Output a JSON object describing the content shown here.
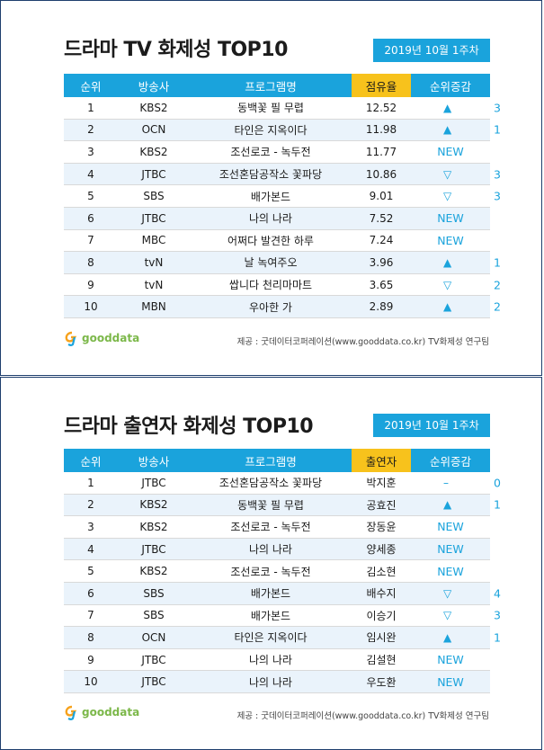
{
  "panels": [
    {
      "title": "드라마 TV 화제성 TOP10",
      "date": "2019년 10월 1주차",
      "headers": [
        "순위",
        "방송사",
        "프로그램명",
        "점유율",
        "순위증감"
      ],
      "rows": [
        {
          "rank": "1",
          "channel": "KBS2",
          "program": "동백꽃 필 무렵",
          "value": "12.52",
          "change_icon": "up-triangle",
          "change": "3"
        },
        {
          "rank": "2",
          "channel": "OCN",
          "program": "타인은 지옥이다",
          "value": "11.98",
          "change_icon": "up-triangle",
          "change": "1"
        },
        {
          "rank": "3",
          "channel": "KBS2",
          "program": "조선로코 - 녹두전",
          "value": "11.77",
          "change_icon": "",
          "change": "NEW"
        },
        {
          "rank": "4",
          "channel": "JTBC",
          "program": "조선혼담공작소 꽃파당",
          "value": "10.86",
          "change_icon": "down-triangle",
          "change": "3"
        },
        {
          "rank": "5",
          "channel": "SBS",
          "program": "배가본드",
          "value": "9.01",
          "change_icon": "down-triangle",
          "change": "3"
        },
        {
          "rank": "6",
          "channel": "JTBC",
          "program": "나의 나라",
          "value": "7.52",
          "change_icon": "",
          "change": "NEW"
        },
        {
          "rank": "7",
          "channel": "MBC",
          "program": "어쩌다 발견한 하루",
          "value": "7.24",
          "change_icon": "",
          "change": "NEW"
        },
        {
          "rank": "8",
          "channel": "tvN",
          "program": "날 녹여주오",
          "value": "3.96",
          "change_icon": "up-triangle",
          "change": "1"
        },
        {
          "rank": "9",
          "channel": "tvN",
          "program": "쌉니다 천리마마트",
          "value": "3.65",
          "change_icon": "down-triangle",
          "change": "2"
        },
        {
          "rank": "10",
          "channel": "MBN",
          "program": "우아한 가",
          "value": "2.89",
          "change_icon": "up-triangle",
          "change": "2"
        }
      ],
      "logo": "gooddata",
      "source": "제공 : 굿데이터코퍼레이션(www.gooddata.co.kr) TV화제성 연구팀"
    },
    {
      "title": "드라마 출연자 화제성 TOP10",
      "date": "2019년 10월 1주차",
      "headers": [
        "순위",
        "방송사",
        "프로그램명",
        "출연자",
        "순위증감"
      ],
      "rows": [
        {
          "rank": "1",
          "channel": "JTBC",
          "program": "조선혼담공작소 꽃파당",
          "value": "박지훈",
          "change_icon": "dash",
          "change": "0"
        },
        {
          "rank": "2",
          "channel": "KBS2",
          "program": "동백꽃 필 무렵",
          "value": "공효진",
          "change_icon": "up-triangle",
          "change": "1"
        },
        {
          "rank": "3",
          "channel": "KBS2",
          "program": "조선로코 - 녹두전",
          "value": "장동윤",
          "change_icon": "",
          "change": "NEW"
        },
        {
          "rank": "4",
          "channel": "JTBC",
          "program": "나의 나라",
          "value": "양세종",
          "change_icon": "",
          "change": "NEW"
        },
        {
          "rank": "5",
          "channel": "KBS2",
          "program": "조선로코 - 녹두전",
          "value": "김소현",
          "change_icon": "",
          "change": "NEW"
        },
        {
          "rank": "6",
          "channel": "SBS",
          "program": "배가본드",
          "value": "배수지",
          "change_icon": "down-triangle",
          "change": "4"
        },
        {
          "rank": "7",
          "channel": "SBS",
          "program": "배가본드",
          "value": "이승기",
          "change_icon": "down-triangle",
          "change": "3"
        },
        {
          "rank": "8",
          "channel": "OCN",
          "program": "타인은 지옥이다",
          "value": "임시완",
          "change_icon": "up-triangle",
          "change": "1"
        },
        {
          "rank": "9",
          "channel": "JTBC",
          "program": "나의 나라",
          "value": "김설현",
          "change_icon": "",
          "change": "NEW"
        },
        {
          "rank": "10",
          "channel": "JTBC",
          "program": "나의 나라",
          "value": "우도환",
          "change_icon": "",
          "change": "NEW"
        }
      ],
      "logo": "gooddata",
      "source": "제공 : 굿데이터코퍼레이션(www.gooddata.co.kr) TV화제성 연구팀"
    }
  ],
  "colors": {
    "accent": "#1aa3dc",
    "highlight": "#f7c21c",
    "row_alt": "#eaf3fb",
    "logo": "#7cb84a"
  }
}
